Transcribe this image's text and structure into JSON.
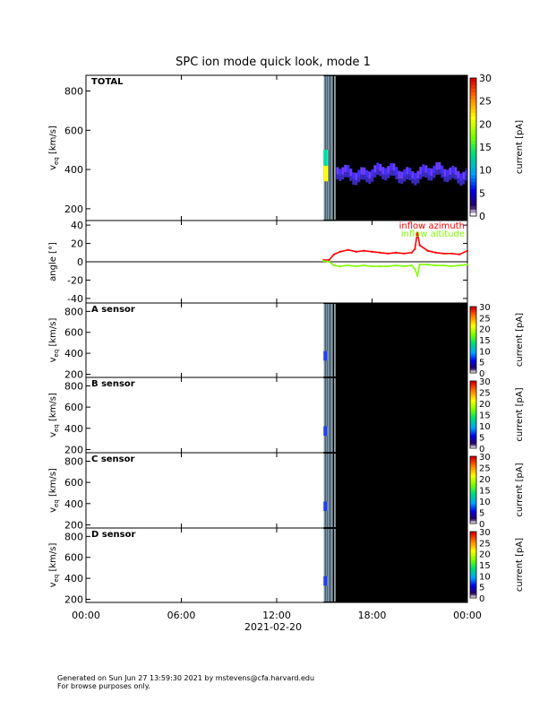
{
  "title": "SPC ion mode quick look, mode 1",
  "footer": {
    "line1": "Generated on Sun Jun 27 13:59:30 2021 by mstevens@cfa.harvard.edu",
    "line2": "For browse purposes only."
  },
  "colors": {
    "background": "#000000",
    "azimuth": "#ff0000",
    "altitude": "#7fff00",
    "zero_line": "#000000"
  },
  "chart_data": [
    {
      "type": "heatmap",
      "panel": "TOTAL",
      "label": "TOTAL",
      "ylabel": "v_eq [km/s]",
      "ylabel_main": "v",
      "ylabel_sub": "eq",
      "ylabel_unit": "[km/s]",
      "ylim": [
        140,
        880
      ],
      "yticks": [
        200,
        400,
        600,
        800
      ],
      "colorbar": {
        "label": "current [pA]",
        "range": [
          0,
          30
        ],
        "ticks": [
          0,
          5,
          10,
          15,
          20,
          25,
          30
        ]
      },
      "data_start_hour": 14.95,
      "beam_band_kms": [
        340,
        410
      ],
      "gap_hours": [
        [
          15.08,
          15.25
        ]
      ]
    },
    {
      "type": "line",
      "panel": "angle",
      "ylabel": "angle [°]",
      "ylim": [
        -45,
        45
      ],
      "yticks": [
        -40,
        -20,
        0,
        20,
        40
      ],
      "series": [
        {
          "name": "inflow azimuth",
          "color": "#ff0000",
          "x": [
            14.95,
            15.3,
            15.6,
            16.0,
            16.5,
            17.0,
            17.5,
            18.0,
            18.5,
            19.0,
            19.5,
            20.0,
            20.5,
            20.7,
            20.85,
            21.0,
            21.5,
            22.0,
            22.5,
            23.0,
            23.5,
            24.0
          ],
          "y": [
            2,
            2,
            8,
            11,
            13,
            11,
            12,
            11,
            10,
            9,
            10,
            9,
            10,
            14,
            32,
            18,
            12,
            10,
            9,
            9,
            8,
            12
          ]
        },
        {
          "name": "inflow altitude",
          "color": "#7fff00",
          "x": [
            14.95,
            15.3,
            15.6,
            16.0,
            16.5,
            17.0,
            17.5,
            18.0,
            18.5,
            19.0,
            19.5,
            20.0,
            20.5,
            20.7,
            20.85,
            21.0,
            21.5,
            22.0,
            22.5,
            23.0,
            23.5,
            24.0
          ],
          "y": [
            1,
            0,
            -4,
            -5,
            -4,
            -5,
            -4,
            -5,
            -5,
            -5,
            -4,
            -5,
            -4,
            -8,
            -15,
            -3,
            -3,
            -4,
            -4,
            -5,
            -4,
            -3
          ]
        }
      ]
    },
    {
      "type": "heatmap",
      "panel": "A",
      "label": "A sensor",
      "ylabel": "v_eq [km/s]",
      "ylabel_main": "v",
      "ylabel_sub": "eq",
      "ylabel_unit": "[km/s]",
      "ylim": [
        170,
        880
      ],
      "yticks": [
        200,
        400,
        600,
        800
      ],
      "colorbar": {
        "label": "current [pA]",
        "range": [
          0,
          30
        ],
        "ticks": [
          0,
          5,
          10,
          15,
          20,
          25,
          30
        ]
      },
      "data_start_hour": 14.95
    },
    {
      "type": "heatmap",
      "panel": "B",
      "label": "B sensor",
      "ylabel": "v_eq [km/s]",
      "ylabel_main": "v",
      "ylabel_sub": "eq",
      "ylabel_unit": "[km/s]",
      "ylim": [
        170,
        880
      ],
      "yticks": [
        200,
        400,
        600,
        800
      ],
      "colorbar": {
        "label": "current [pA]",
        "range": [
          0,
          30
        ],
        "ticks": [
          0,
          5,
          10,
          15,
          20,
          25,
          30
        ]
      },
      "data_start_hour": 14.95
    },
    {
      "type": "heatmap",
      "panel": "C",
      "label": "C sensor",
      "ylabel": "v_eq [km/s]",
      "ylabel_main": "v",
      "ylabel_sub": "eq",
      "ylabel_unit": "[km/s]",
      "ylim": [
        170,
        880
      ],
      "yticks": [
        200,
        400,
        600,
        800
      ],
      "colorbar": {
        "label": "current [pA]",
        "range": [
          0,
          30
        ],
        "ticks": [
          0,
          5,
          10,
          15,
          20,
          25,
          30
        ]
      },
      "data_start_hour": 14.95
    },
    {
      "type": "heatmap",
      "panel": "D",
      "label": "D sensor",
      "ylabel": "v_eq [km/s]",
      "ylabel_main": "v",
      "ylabel_sub": "eq",
      "ylabel_unit": "[km/s]",
      "ylim": [
        170,
        880
      ],
      "yticks": [
        200,
        400,
        600,
        800
      ],
      "colorbar": {
        "label": "current [pA]",
        "range": [
          0,
          30
        ],
        "ticks": [
          0,
          5,
          10,
          15,
          20,
          25,
          30
        ]
      },
      "data_start_hour": 14.95
    }
  ],
  "x_axis": {
    "range_hours": [
      0,
      24
    ],
    "ticks": [
      0,
      6,
      12,
      18,
      24
    ],
    "tick_labels": [
      "00:00",
      "06:00",
      "12:00",
      "18:00",
      "00:00"
    ],
    "date_label": "2021-02-20"
  }
}
